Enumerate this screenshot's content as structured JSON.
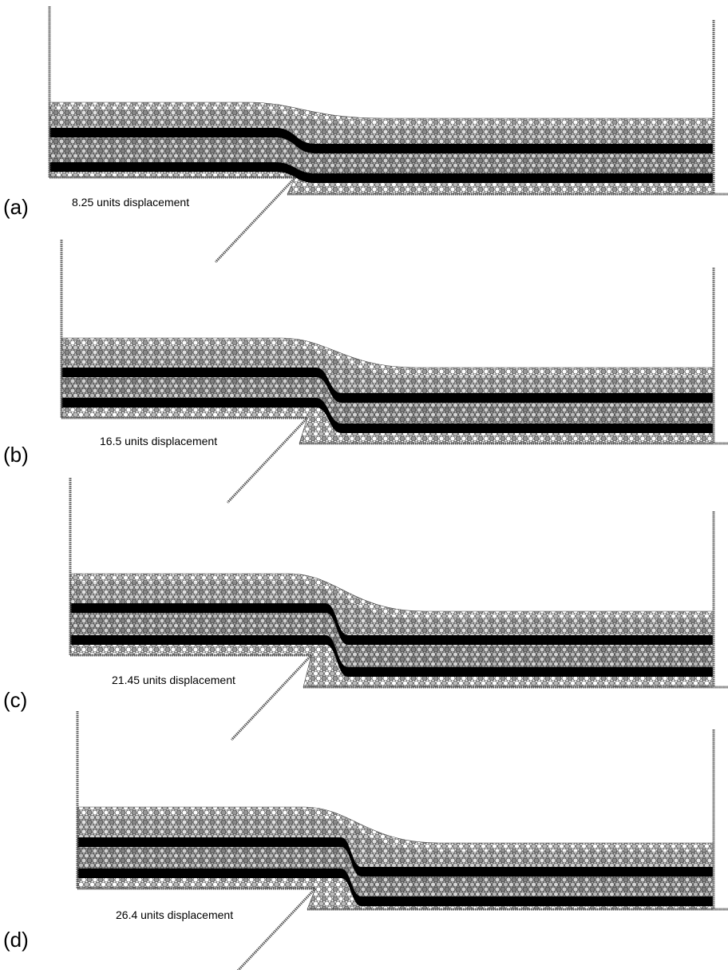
{
  "panels": [
    {
      "label": "(a)",
      "caption": "8.25 units displacement"
    },
    {
      "label": "(b)",
      "caption": "16.5 units displacement"
    },
    {
      "label": "(c)",
      "caption": "21.45 units displacement"
    },
    {
      "label": "(d)",
      "caption": "26.4 units displacement"
    }
  ]
}
